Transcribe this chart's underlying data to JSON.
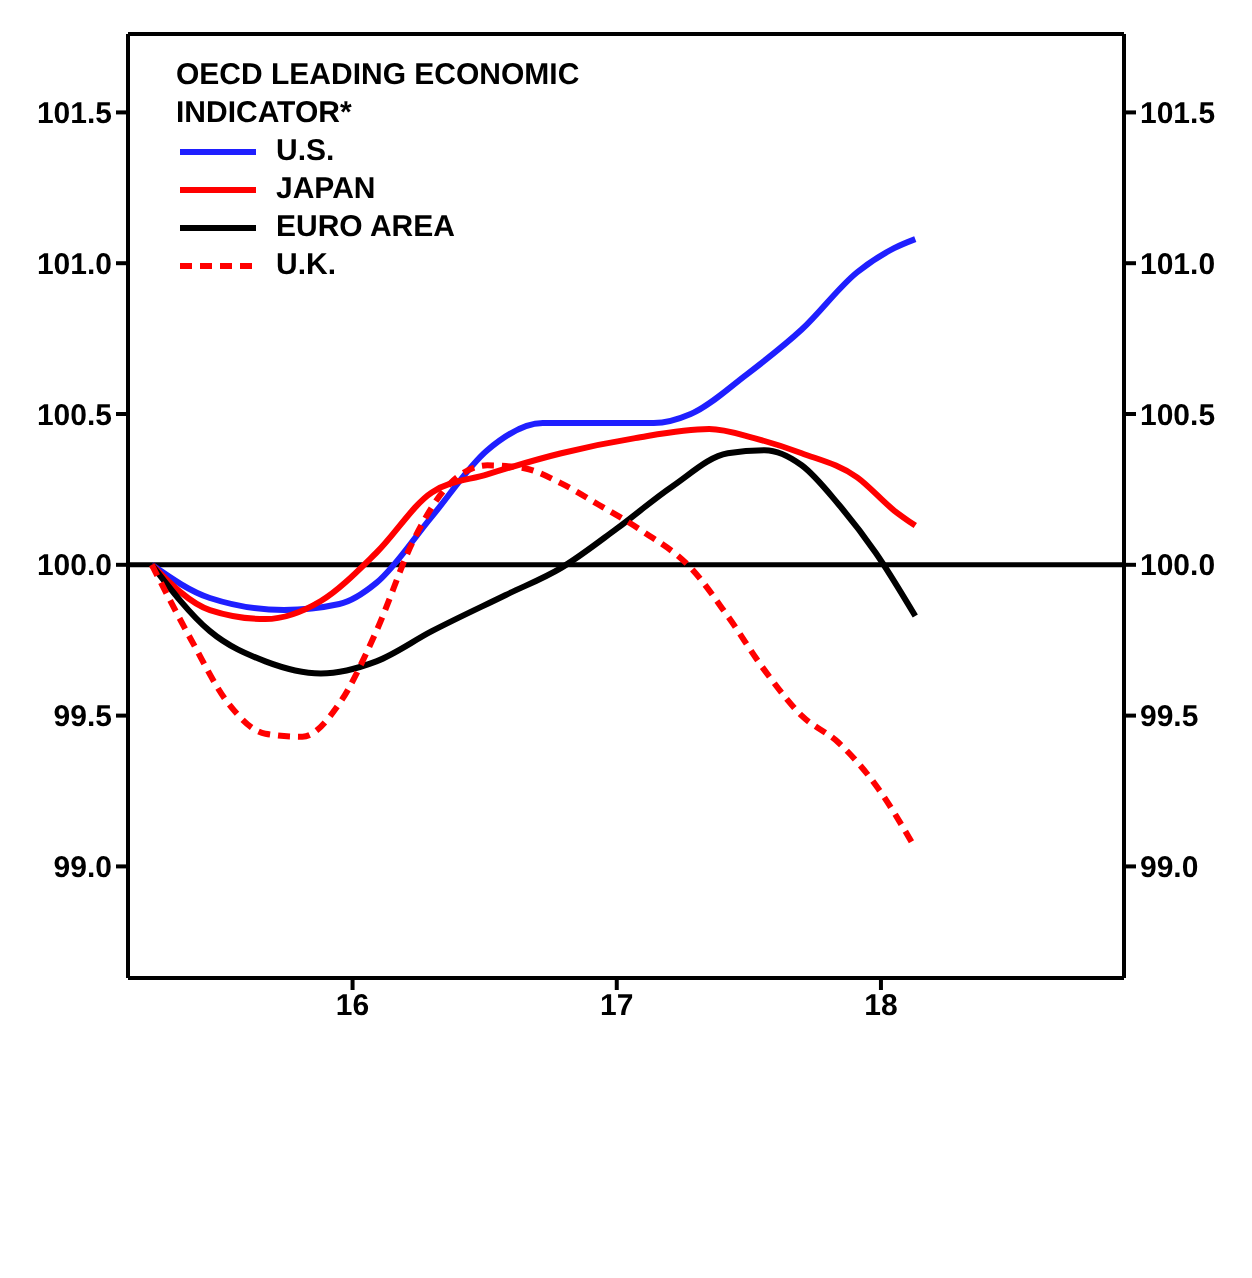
{
  "chart_data": {
    "type": "line",
    "legend_title": "OECD LEADING ECONOMIC INDICATOR*",
    "legend": "top left",
    "marker": "none",
    "xlim": [
      2015.15,
      2018.92
    ],
    "xticks": [
      {
        "value": 2016,
        "label": "16"
      },
      {
        "value": 2017,
        "label": "17"
      },
      {
        "value": 2018,
        "label": "18"
      }
    ],
    "ylim": [
      98.63,
      101.76
    ],
    "yticks": [
      {
        "value": 99,
        "label": "99.0"
      },
      99.5,
      {
        "value": 100,
        "label": "100.0"
      },
      100.5,
      {
        "value": 101,
        "label": "101.0"
      },
      101.5
    ],
    "y2lim": [
      98.63,
      101.76
    ],
    "y2ticks": [
      {
        "value": 99,
        "label": "99.0"
      },
      99.5,
      {
        "value": 100,
        "label": "100.0"
      },
      100.5,
      {
        "value": 101,
        "label": "101.0"
      },
      101.5
    ],
    "ref_lines": [
      {
        "axis": "y",
        "value": 100.0,
        "label": null,
        "color": "#000000"
      }
    ],
    "series": [
      {
        "name": "U.S.",
        "color": "#1f1fff",
        "line_style": "solid",
        "x": [
          2015.24,
          2015.46,
          2015.74,
          2015.95,
          2016.09,
          2016.3,
          2016.51,
          2016.72,
          2016.93,
          2017.14,
          2017.28,
          2017.49,
          2017.7,
          2017.91,
          2018.05,
          2018.13
        ],
        "values": [
          100.0,
          99.89,
          99.85,
          99.87,
          99.94,
          100.16,
          100.38,
          100.47,
          100.47,
          100.47,
          100.5,
          100.63,
          100.78,
          100.97,
          101.05,
          101.08
        ]
      },
      {
        "name": "JAPAN",
        "color": "#ff0000",
        "line_style": "solid",
        "x": [
          2015.24,
          2015.46,
          2015.67,
          2015.88,
          2016.09,
          2016.3,
          2016.51,
          2016.79,
          2017.07,
          2017.35,
          2017.52,
          2017.7,
          2017.91,
          2018.05,
          2018.13
        ],
        "values": [
          100.0,
          99.85,
          99.82,
          99.88,
          100.04,
          100.24,
          100.3,
          100.37,
          100.42,
          100.45,
          100.42,
          100.37,
          100.29,
          100.18,
          100.13
        ]
      },
      {
        "name": "EURO AREA",
        "color": "#000000",
        "line_style": "solid",
        "x": [
          2015.24,
          2015.46,
          2015.67,
          2015.88,
          2016.09,
          2016.3,
          2016.58,
          2016.79,
          2017.0,
          2017.21,
          2017.42,
          2017.56,
          2017.7,
          2017.84,
          2017.98,
          2018.13
        ],
        "values": [
          100.0,
          99.78,
          99.68,
          99.64,
          99.68,
          99.78,
          99.9,
          99.99,
          100.12,
          100.26,
          100.37,
          100.38,
          100.33,
          100.2,
          100.04,
          99.83
        ]
      },
      {
        "name": "U.K.",
        "color": "#ff0000",
        "line_style": "dashed",
        "x": [
          2015.24,
          2015.39,
          2015.53,
          2015.67,
          2015.81,
          2015.95,
          2016.09,
          2016.23,
          2016.37,
          2016.51,
          2016.65,
          2016.79,
          2016.93,
          2017.1,
          2017.28,
          2017.42,
          2017.56,
          2017.7,
          2017.84,
          2017.98,
          2018.13
        ],
        "values": [
          100.0,
          99.75,
          99.54,
          99.44,
          99.43,
          99.54,
          99.78,
          100.08,
          100.27,
          100.33,
          100.32,
          100.27,
          100.2,
          100.11,
          99.99,
          99.83,
          99.65,
          99.5,
          99.41,
          99.27,
          99.06
        ]
      }
    ]
  }
}
